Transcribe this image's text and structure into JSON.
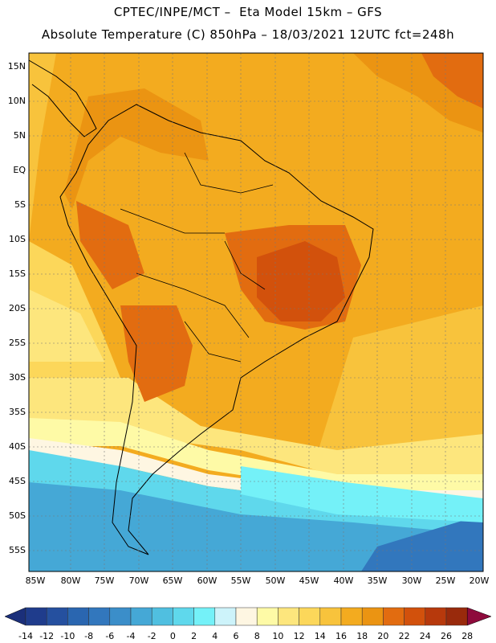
{
  "header": {
    "line1": "CPTEC/INPE/MCT –  Eta Model 15km – GFS",
    "line2": "Absolute Temperature (C) 850hPa – 18/03/2021 12UTC fct=248h"
  },
  "map": {
    "lat_labels": [
      "15N",
      "10N",
      "5N",
      "EQ",
      "5S",
      "10S",
      "15S",
      "20S",
      "25S",
      "30S",
      "35S",
      "40S",
      "45S",
      "50S",
      "55S"
    ],
    "lon_labels": [
      "85W",
      "80W",
      "75W",
      "70W",
      "65W",
      "60W",
      "55W",
      "50W",
      "45W",
      "40W",
      "35W",
      "30W",
      "25W",
      "20W"
    ],
    "domain": {
      "lon_min": -86,
      "lon_max": -19.5,
      "lat_min": -58.5,
      "lat_max": 16
    }
  },
  "colorbar": {
    "labels": [
      "-14",
      "-12",
      "-10",
      "-8",
      "-6",
      "-4",
      "-2",
      "0",
      "2",
      "4",
      "6",
      "8",
      "10",
      "12",
      "14",
      "16",
      "18",
      "20",
      "22",
      "24",
      "26",
      "28"
    ],
    "colors": [
      "#1f3c8c",
      "#25509f",
      "#2a66b0",
      "#3277bd",
      "#3b8ec9",
      "#45a8d6",
      "#50bfe0",
      "#5fd8ec",
      "#74f1f8",
      "#cdf3fa",
      "#fef6e2",
      "#fefaa6",
      "#fde67d",
      "#fcd75a",
      "#f8c33c",
      "#f3ab1f",
      "#eb9412",
      "#e26c10",
      "#d2510c",
      "#b7390c",
      "#992a0c",
      "#7e1b0b",
      "#8e0a3c"
    ],
    "arrow_left_color": "#1b2f7a",
    "arrow_right_color": "#8e0a3c"
  }
}
